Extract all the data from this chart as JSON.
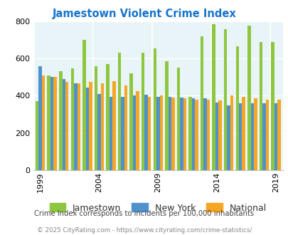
{
  "title": "Jamestown Violent Crime Index",
  "title_color": "#1874cd",
  "years": [
    1999,
    2000,
    2001,
    2002,
    2003,
    2004,
    2005,
    2006,
    2007,
    2008,
    2009,
    2010,
    2011,
    2012,
    2013,
    2014,
    2015,
    2016,
    2017,
    2018,
    2019
  ],
  "jamestown": [
    370,
    510,
    530,
    545,
    700,
    560,
    570,
    630,
    520,
    630,
    655,
    585,
    550,
    395,
    720,
    785,
    755,
    665,
    775,
    690,
    690
  ],
  "new_york": [
    560,
    500,
    490,
    465,
    445,
    410,
    395,
    395,
    400,
    405,
    395,
    395,
    390,
    385,
    385,
    365,
    350,
    360,
    360,
    360,
    360
  ],
  "national": [
    510,
    500,
    475,
    465,
    475,
    465,
    480,
    455,
    425,
    395,
    400,
    390,
    385,
    380,
    380,
    375,
    400,
    395,
    385,
    380,
    380
  ],
  "xticks": [
    1999,
    2004,
    2009,
    2014,
    2019
  ],
  "ylim": [
    0,
    800
  ],
  "yticks": [
    0,
    200,
    400,
    600,
    800
  ],
  "color_jamestown": "#8dc63f",
  "color_newyork": "#4f91cd",
  "color_national": "#f5a623",
  "bg_color": "#e8f4f8",
  "legend_text_color": "#333333",
  "subtitle": "Crime Index corresponds to incidents per 100,000 inhabitants",
  "footer": "© 2025 CityRating.com - https://www.cityrating.com/crime-statistics/",
  "subtitle_color": "#444444",
  "footer_color": "#888888"
}
